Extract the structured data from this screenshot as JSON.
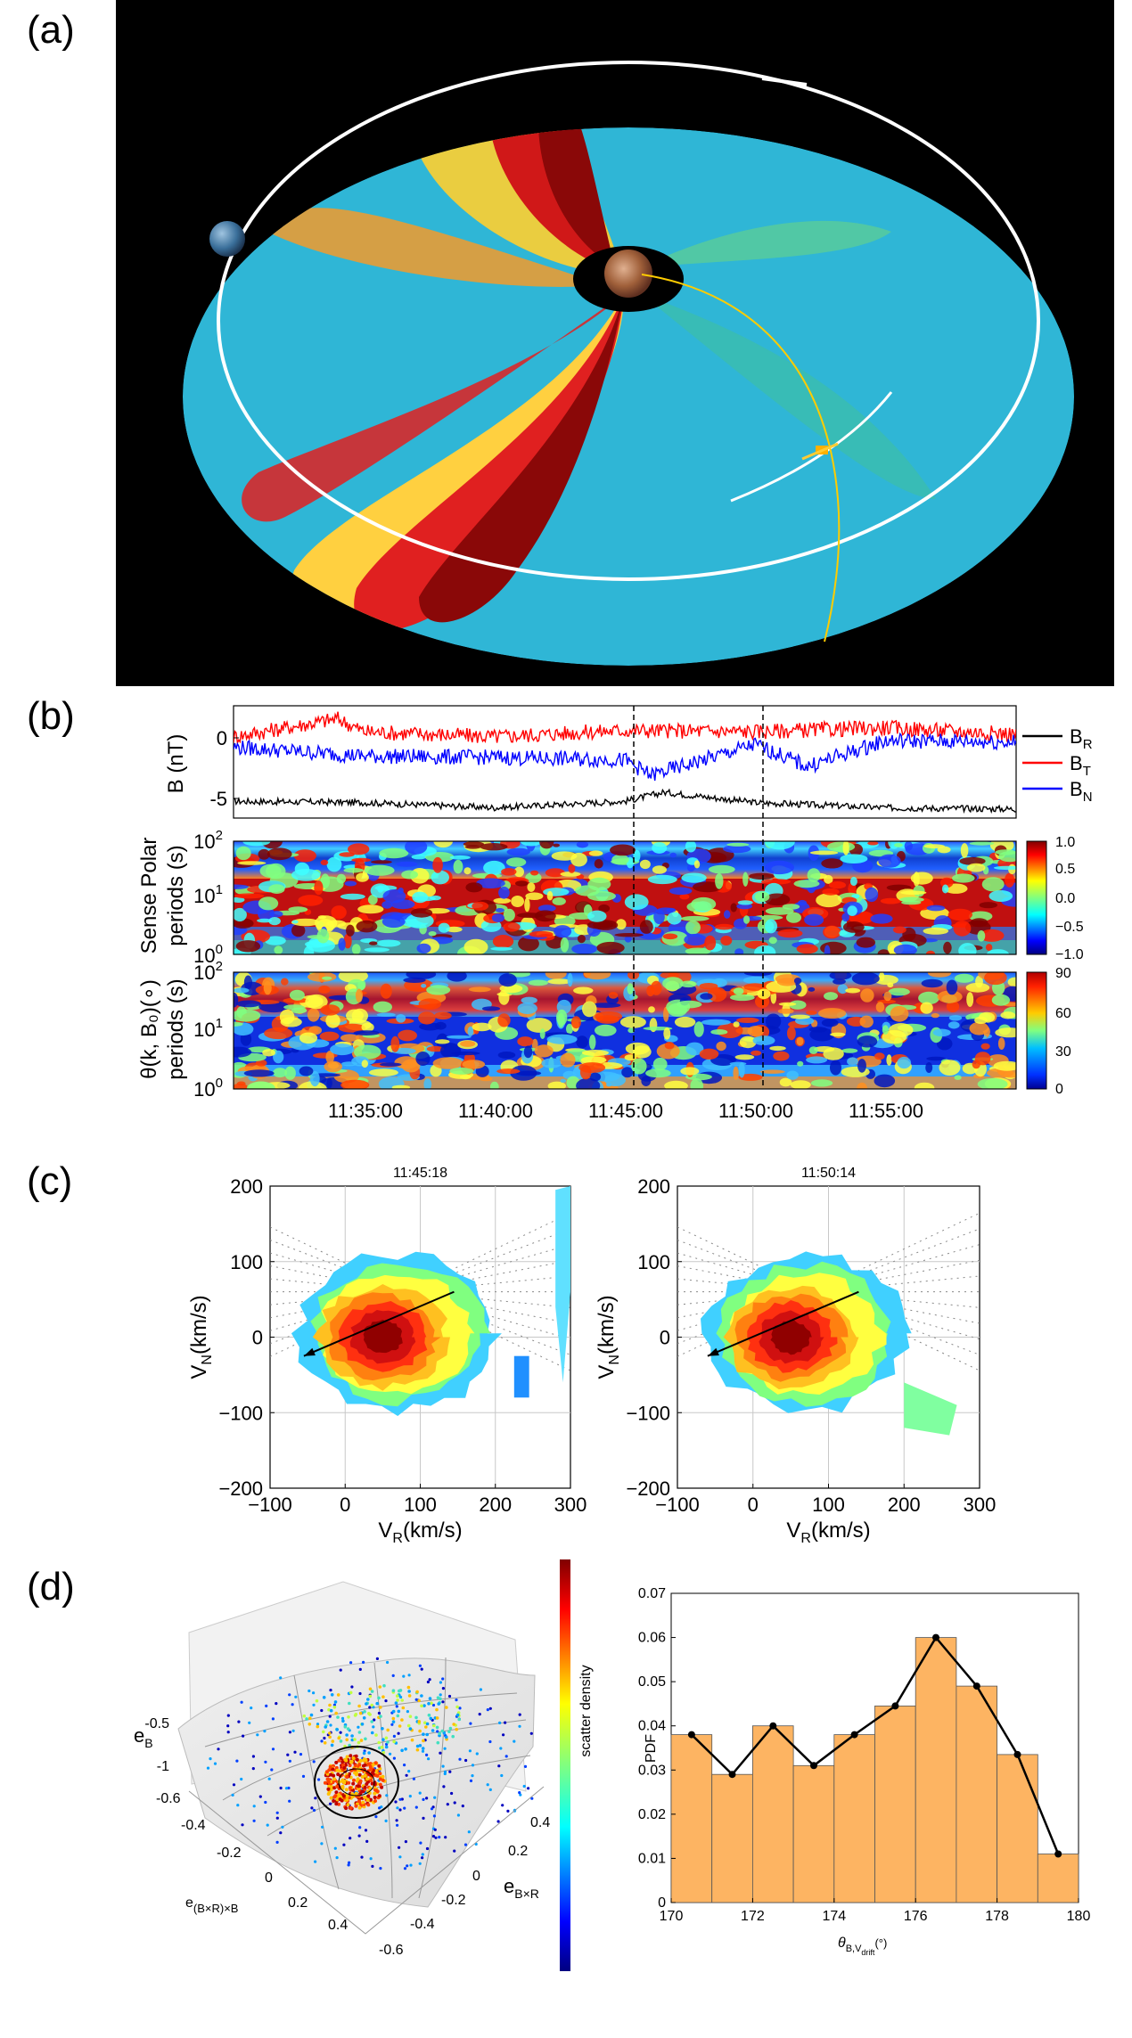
{
  "panel_labels": {
    "a": "(a)",
    "b": "(b)",
    "c": "(c)",
    "d": "(d)"
  },
  "chart_data": [
    {
      "id": "a",
      "type": "other",
      "title": "",
      "elements": [
        "Sun at center",
        "Earth",
        "spacecraft",
        "spiral solar wind structure",
        "planetary orbit"
      ]
    },
    {
      "id": "b1",
      "type": "line",
      "ylabel": "B (nT)",
      "y_ticks": [
        0,
        -5
      ],
      "ylim": [
        -6.5,
        2.2
      ],
      "x_ticks": [
        "11:35:00",
        "11:40:00",
        "11:45:00",
        "11:50:00",
        "11:55:00"
      ],
      "vlines": [
        "11:45:18",
        "11:50:14"
      ],
      "series": [
        {
          "name": "B",
          "sub": "R",
          "color": "#000000",
          "approx_level": -5.5,
          "x": [
            "11:30",
            "11:35",
            "11:40",
            "11:45",
            "11:46:30",
            "11:50",
            "11:55",
            "12:00"
          ],
          "y": [
            -5.2,
            -5.3,
            -5.7,
            -5.2,
            -4.5,
            -5.3,
            -5.7,
            -5.8
          ]
        },
        {
          "name": "B",
          "sub": "T",
          "color": "#ff0000",
          "approx_level": 0.0,
          "x": [
            "11:30",
            "11:34",
            "11:35",
            "11:40",
            "11:45",
            "11:50",
            "11:55",
            "12:00"
          ],
          "y": [
            -0.2,
            1.2,
            0.2,
            -0.2,
            0.3,
            0.2,
            0.5,
            0.0
          ]
        },
        {
          "name": "B",
          "sub": "N",
          "color": "#0000ff",
          "approx_level": -1.5,
          "x": [
            "11:30",
            "11:35",
            "11:40",
            "11:45",
            "11:46",
            "11:50",
            "11:52",
            "11:55",
            "12:00"
          ],
          "y": [
            -1.0,
            -1.7,
            -1.8,
            -2.0,
            -3.2,
            -0.8,
            -2.5,
            -0.5,
            -0.6
          ]
        }
      ]
    },
    {
      "id": "b2",
      "type": "heatmap",
      "ylabel": "Sense Polar periods (s)",
      "ylabel_lines": [
        "Sense Polar",
        "periods (s)"
      ],
      "y_scale": "log",
      "y_ticks": [
        "10",
        "10",
        "10"
      ],
      "y_tick_exp": [
        "2",
        "1",
        "0"
      ],
      "colorbar_ticks": [
        "1.0",
        "0.5",
        "0.0",
        "−0.5",
        "−1.0"
      ],
      "colorbar_range": [
        -1.0,
        1.0
      ]
    },
    {
      "id": "b3",
      "type": "heatmap",
      "ylabel": "θ(k, B₀)(∘) periods (s)",
      "ylabel_lines": [
        "θ(k, B₀)(∘)",
        "periods (s)"
      ],
      "y_scale": "log",
      "y_ticks": [
        "10",
        "10",
        "10"
      ],
      "y_tick_exp": [
        "2",
        "1",
        "0"
      ],
      "colorbar_ticks": [
        "90",
        "60",
        "30",
        "0"
      ],
      "colorbar_range": [
        0,
        90
      ]
    },
    {
      "id": "c1",
      "type": "heatmap",
      "title": "11:45:18",
      "xlabel": "V",
      "xlabel_sub": "R",
      "xlabel_unit": "(km/s)",
      "ylabel": "V",
      "ylabel_sub": "N",
      "ylabel_unit": "(km/s)",
      "xlim": [
        -100,
        300
      ],
      "ylim": [
        -200,
        200
      ],
      "x_ticks": [
        "−100",
        "0",
        "100",
        "200",
        "300"
      ],
      "y_ticks": [
        "200",
        "100",
        "0",
        "−100",
        "−200"
      ],
      "peak": [
        30,
        0
      ],
      "arrow": {
        "from": [
          145,
          60
        ],
        "to": [
          -55,
          -25
        ]
      }
    },
    {
      "id": "c2",
      "type": "heatmap",
      "title": "11:50:14",
      "xlabel": "V",
      "xlabel_sub": "R",
      "xlabel_unit": "(km/s)",
      "ylabel": "V",
      "ylabel_sub": "N",
      "ylabel_unit": "(km/s)",
      "xlim": [
        -100,
        300
      ],
      "ylim": [
        -200,
        200
      ],
      "x_ticks": [
        "−100",
        "0",
        "100",
        "200",
        "300"
      ],
      "y_ticks": [
        "200",
        "100",
        "0",
        "−100",
        "−200"
      ],
      "peak": [
        30,
        0
      ],
      "arrow": {
        "from": [
          140,
          60
        ],
        "to": [
          -60,
          -25
        ]
      }
    },
    {
      "id": "d1",
      "type": "scatter",
      "colorbar_label": "scatter density",
      "z_label": "e",
      "z_label_sub": "B",
      "y_label": "e",
      "y_label_sub": "B×R",
      "x_label": "e",
      "x_label_sub": "(B×R)×B",
      "z_ticks": [
        "-0.5",
        "-1"
      ],
      "x_ticks": [
        "-0.6",
        "-0.4",
        "-0.2",
        "0",
        "0.2",
        "0.4"
      ],
      "y_ticks": [
        "0.4",
        "0.2",
        "0",
        "-0.2",
        "-0.4",
        "-0.6"
      ]
    },
    {
      "id": "d2",
      "type": "bar",
      "ylabel": "PDF",
      "xlabel": "θ",
      "xlabel_sub": "B,V",
      "xlabel_subsub": "drift",
      "xlabel_unit": "(°)",
      "xlim": [
        170,
        180
      ],
      "ylim": [
        0,
        0.07
      ],
      "x_ticks": [
        "170",
        "172",
        "174",
        "176",
        "178",
        "180"
      ],
      "y_ticks": [
        "0",
        "0.01",
        "0.02",
        "0.03",
        "0.04",
        "0.05",
        "0.06",
        "0.07"
      ],
      "bins": [
        [
          170,
          171
        ],
        [
          171,
          172
        ],
        [
          172,
          173
        ],
        [
          173,
          174
        ],
        [
          174,
          175
        ],
        [
          175,
          176
        ],
        [
          176,
          177
        ],
        [
          177,
          178
        ],
        [
          178,
          179
        ],
        [
          179,
          180
        ]
      ],
      "values": [
        0.038,
        0.029,
        0.04,
        0.031,
        0.038,
        0.0445,
        0.06,
        0.049,
        0.0335,
        0.011
      ],
      "line_x": [
        170.5,
        171.5,
        172.5,
        173.5,
        174.5,
        175.5,
        176.5,
        177.5,
        178.5,
        179.5
      ],
      "line_y": [
        0.038,
        0.029,
        0.04,
        0.031,
        0.038,
        0.0445,
        0.06,
        0.049,
        0.0335,
        0.011
      ],
      "bar_color": "#fdb462"
    }
  ]
}
